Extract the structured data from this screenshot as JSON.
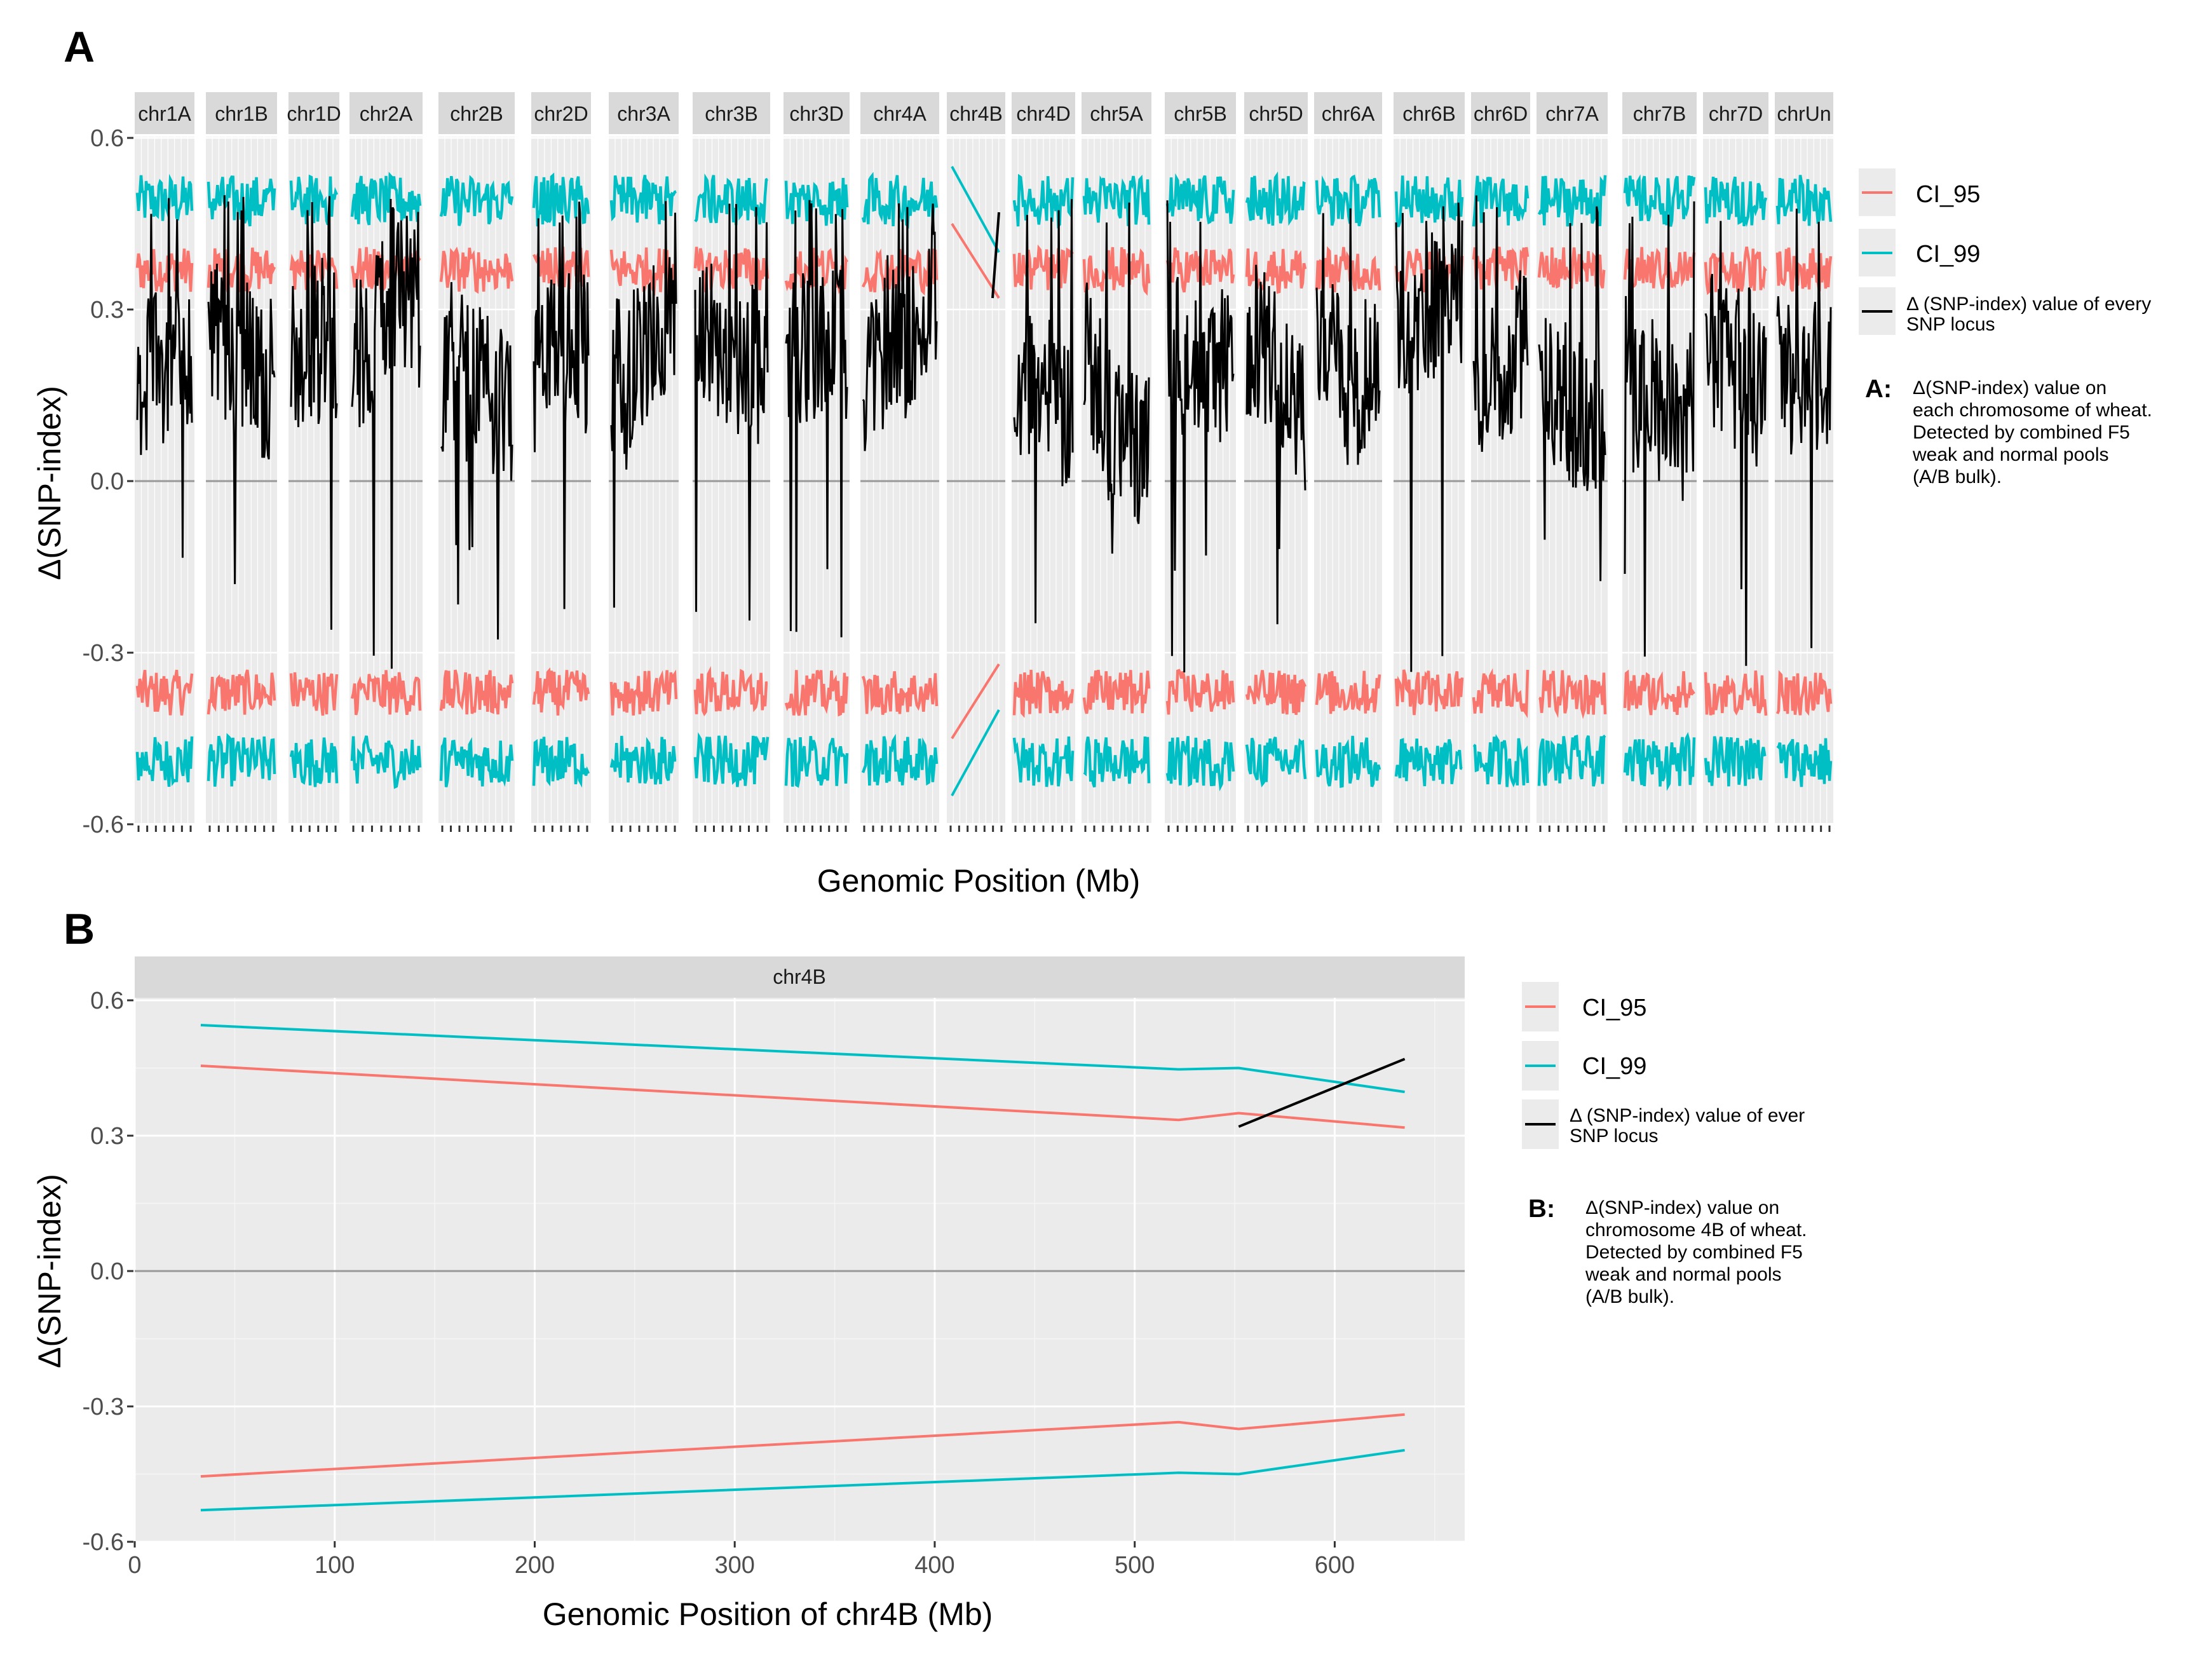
{
  "figure": {
    "panel_a_label": "A",
    "panel_b_label": "B"
  },
  "legend_a": {
    "items": [
      {
        "label": "CI_95",
        "color": "#F8766D"
      },
      {
        "label": "CI_99",
        "color": "#00BFC4"
      },
      {
        "label_line1": "Δ (SNP-index) value of every",
        "label_line2": "SNP locus",
        "color": "#000000"
      }
    ],
    "note_label": "A:",
    "note_lines": [
      "Δ(SNP-index) value on",
      "each chromosome of wheat.",
      "Detected by combined F5",
      "weak and normal pools",
      "(A/B bulk)."
    ]
  },
  "legend_b": {
    "items": [
      {
        "label": "CI_95",
        "color": "#F8766D"
      },
      {
        "label": "CI_99",
        "color": "#00BFC4"
      },
      {
        "label_line1": "Δ (SNP-index) value of ever",
        "label_line2": "SNP locus",
        "color": "#000000"
      }
    ],
    "note_label": "B:",
    "note_lines": [
      "Δ(SNP-index) value on",
      "chromosome 4B of wheat.",
      "Detected by combined F5",
      "weak and normal pools",
      "(A/B bulk)."
    ]
  },
  "chart_data": [
    {
      "type": "line",
      "title": "",
      "xlabel": "Genomic Position (Mb)",
      "ylabel": "Δ(SNP-index)",
      "ylim": [
        -0.6,
        0.6
      ],
      "yticks": [
        "0.6",
        "0.3",
        "0.0",
        "-0.3",
        "-0.6"
      ],
      "yticks_values": [
        0.6,
        0.3,
        0.0,
        -0.3,
        -0.6
      ],
      "facets": [
        "chr1A",
        "chr1B",
        "chr1D",
        "chr2A",
        "chr2B",
        "chr2D",
        "chr3A",
        "chr3B",
        "chr3D",
        "chr4A",
        "chr4B",
        "chr4D",
        "chr5A",
        "chr5B",
        "chr5D",
        "chr6A",
        "chr6B",
        "chr6D",
        "chr7A",
        "chr7B",
        "chr7D",
        "chrUn"
      ],
      "series": [
        {
          "name": "CI_95",
          "color": "#F8766D",
          "approx_upper": 0.37,
          "approx_lower": -0.37
        },
        {
          "name": "CI_99",
          "color": "#00BFC4",
          "approx_upper": 0.49,
          "approx_lower": -0.49
        },
        {
          "name": "Δ (SNP-index) value of every SNP locus",
          "color": "#000000"
        }
      ],
      "chr4B": {
        "CI_95_upper": [
          0.45,
          0.32
        ],
        "CI_99_upper": [
          0.55,
          0.4
        ],
        "CI_95_lower": [
          -0.45,
          -0.32
        ],
        "CI_99_lower": [
          -0.55,
          -0.4
        ],
        "snp": [
          0.32,
          0.47
        ]
      }
    },
    {
      "type": "line",
      "title": "chr4B",
      "xlabel": "Genomic Position of chr4B (Mb)",
      "ylabel": "Δ(SNP-index)",
      "xlim": [
        0,
        665
      ],
      "ylim": [
        -0.6,
        0.66
      ],
      "xticks": [
        "0",
        "100",
        "200",
        "300",
        "400",
        "500",
        "600"
      ],
      "xticks_values": [
        0,
        100,
        200,
        300,
        400,
        500,
        600
      ],
      "yticks": [
        "0.6",
        "0.3",
        "0.0",
        "-0.3",
        "-0.6"
      ],
      "yticks_values": [
        0.6,
        0.3,
        0.0,
        -0.3,
        -0.6
      ],
      "series": [
        {
          "name": "CI_95 upper",
          "color": "#F8766D",
          "x": [
            33,
            522,
            552,
            635
          ],
          "y": [
            0.455,
            0.335,
            0.35,
            0.318
          ]
        },
        {
          "name": "CI_99 upper",
          "color": "#00BFC4",
          "x": [
            33,
            522,
            552,
            635
          ],
          "y": [
            0.545,
            0.447,
            0.45,
            0.397
          ]
        },
        {
          "name": "CI_95 lower",
          "color": "#F8766D",
          "x": [
            33,
            522,
            552,
            635
          ],
          "y": [
            -0.455,
            -0.335,
            -0.35,
            -0.318
          ]
        },
        {
          "name": "CI_99 lower",
          "color": "#00BFC4",
          "x": [
            33,
            522,
            552,
            635
          ],
          "y": [
            -0.53,
            -0.447,
            -0.45,
            -0.397
          ]
        },
        {
          "name": "Δ (SNP-index) value of ever SNP locus",
          "color": "#000000",
          "x": [
            552,
            635
          ],
          "y": [
            0.32,
            0.47
          ]
        }
      ]
    }
  ]
}
